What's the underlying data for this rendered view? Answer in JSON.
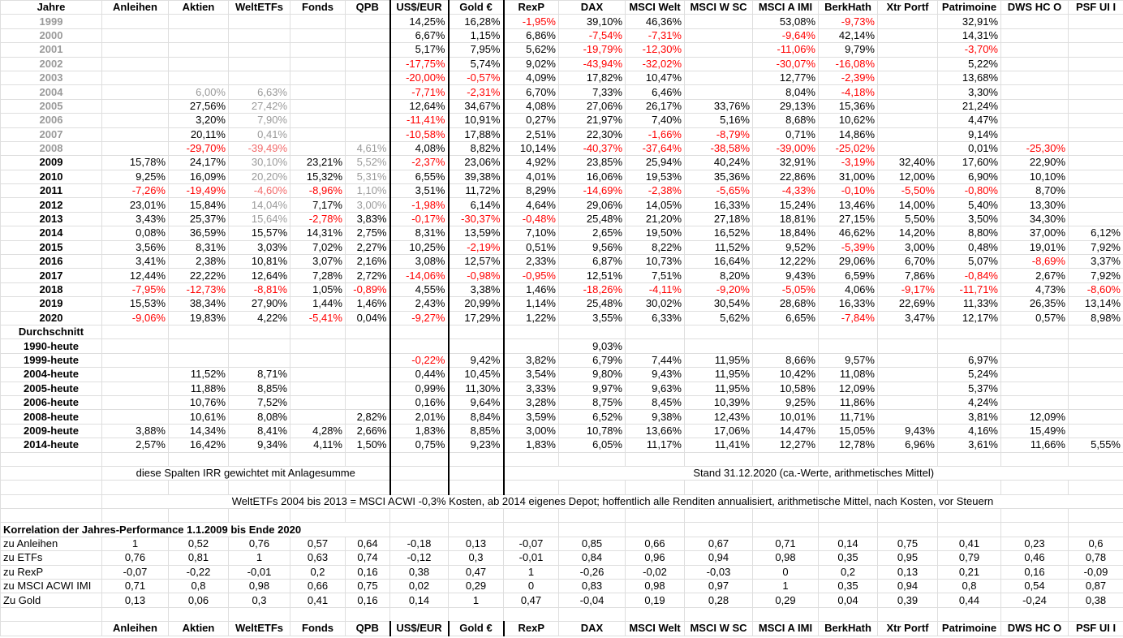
{
  "header": [
    "Jahre",
    "Anleihen",
    "Aktien",
    "WeltETFs",
    "Fonds",
    "QPB",
    "US$/EUR",
    "Gold €",
    "RexP",
    "DAX",
    "MSCI Welt",
    "MSCI W SC",
    "MSCI A IMI",
    "BerkHath",
    "Xtr Portf",
    "Patrimoine",
    "DWS HC O",
    "PSF UI I"
  ],
  "years": [
    [
      "1999",
      null,
      null,
      null,
      null,
      null,
      "14,25%",
      "16,28%",
      "-1,95%",
      "39,10%",
      "46,36%",
      null,
      "53,08%",
      "-9,73%",
      null,
      "32,91%",
      null,
      null
    ],
    [
      "2000",
      null,
      null,
      null,
      null,
      null,
      "6,67%",
      "1,15%",
      "6,86%",
      "-7,54%",
      "-7,31%",
      null,
      "-9,64%",
      "42,14%",
      null,
      "14,31%",
      null,
      null
    ],
    [
      "2001",
      null,
      null,
      null,
      null,
      null,
      "5,17%",
      "7,95%",
      "5,62%",
      "-19,79%",
      "-12,30%",
      null,
      "-11,06%",
      "9,79%",
      null,
      "-3,70%",
      null,
      null
    ],
    [
      "2002",
      null,
      null,
      null,
      null,
      null,
      "-17,75%",
      "5,74%",
      "9,02%",
      "-43,94%",
      "-32,02%",
      null,
      "-30,07%",
      "-16,08%",
      null,
      "5,22%",
      null,
      null
    ],
    [
      "2003",
      null,
      null,
      null,
      null,
      null,
      "-20,00%",
      "-0,57%",
      "4,09%",
      "17,82%",
      "10,47%",
      null,
      "12,77%",
      "-2,39%",
      null,
      "13,68%",
      null,
      null
    ],
    [
      "2004",
      null,
      "6,00%",
      "6,63%",
      null,
      null,
      "-7,71%",
      "-2,31%",
      "6,70%",
      "7,33%",
      "6,46%",
      null,
      "8,04%",
      "-4,18%",
      null,
      "3,30%",
      null,
      null
    ],
    [
      "2005",
      null,
      "27,56%",
      "27,42%",
      null,
      null,
      "12,64%",
      "34,67%",
      "4,08%",
      "27,06%",
      "26,17%",
      "33,76%",
      "29,13%",
      "15,36%",
      null,
      "21,24%",
      null,
      null
    ],
    [
      "2006",
      null,
      "3,20%",
      "7,90%",
      null,
      null,
      "-11,41%",
      "10,91%",
      "0,27%",
      "21,97%",
      "7,40%",
      "5,16%",
      "8,68%",
      "10,62%",
      null,
      "4,47%",
      null,
      null
    ],
    [
      "2007",
      null,
      "20,11%",
      "0,41%",
      null,
      null,
      "-10,58%",
      "17,88%",
      "2,51%",
      "22,30%",
      "-1,66%",
      "-8,79%",
      "0,71%",
      "14,86%",
      null,
      "9,14%",
      null,
      null
    ],
    [
      "2008",
      null,
      "-29,70%",
      "-39,49%",
      null,
      "4,61%",
      "4,08%",
      "8,82%",
      "10,14%",
      "-40,37%",
      "-37,64%",
      "-38,58%",
      "-39,00%",
      "-25,02%",
      null,
      "0,01%",
      "-25,30%",
      null
    ],
    [
      "2009",
      "15,78%",
      "24,17%",
      "30,10%",
      "23,21%",
      "5,52%",
      "-2,37%",
      "23,06%",
      "4,92%",
      "23,85%",
      "25,94%",
      "40,24%",
      "32,91%",
      "-3,19%",
      "32,40%",
      "17,60%",
      "22,90%",
      null
    ],
    [
      "2010",
      "9,25%",
      "16,09%",
      "20,20%",
      "15,32%",
      "5,31%",
      "6,55%",
      "39,38%",
      "4,01%",
      "16,06%",
      "19,53%",
      "35,36%",
      "22,86%",
      "31,00%",
      "12,00%",
      "6,90%",
      "10,10%",
      null
    ],
    [
      "2011",
      "-7,26%",
      "-19,49%",
      "-4,60%",
      "-8,96%",
      "1,10%",
      "3,51%",
      "11,72%",
      "8,29%",
      "-14,69%",
      "-2,38%",
      "-5,65%",
      "-4,33%",
      "-0,10%",
      "-5,50%",
      "-0,80%",
      "8,70%",
      null
    ],
    [
      "2012",
      "23,01%",
      "15,84%",
      "14,04%",
      "7,17%",
      "3,00%",
      "-1,98%",
      "6,14%",
      "4,64%",
      "29,06%",
      "14,05%",
      "16,33%",
      "15,24%",
      "13,46%",
      "14,00%",
      "5,40%",
      "13,30%",
      null
    ],
    [
      "2013",
      "3,43%",
      "25,37%",
      "15,64%",
      "-2,78%",
      "3,83%",
      "-0,17%",
      "-30,37%",
      "-0,48%",
      "25,48%",
      "21,20%",
      "27,18%",
      "18,81%",
      "27,15%",
      "5,50%",
      "3,50%",
      "34,30%",
      null
    ],
    [
      "2014",
      "0,08%",
      "36,59%",
      "15,57%",
      "14,31%",
      "2,75%",
      "8,31%",
      "13,59%",
      "7,10%",
      "2,65%",
      "19,50%",
      "16,52%",
      "18,84%",
      "46,62%",
      "14,20%",
      "8,80%",
      "37,00%",
      "6,12%"
    ],
    [
      "2015",
      "3,56%",
      "8,31%",
      "3,03%",
      "7,02%",
      "2,27%",
      "10,25%",
      "-2,19%",
      "0,51%",
      "9,56%",
      "8,22%",
      "11,52%",
      "9,52%",
      "-5,39%",
      "3,00%",
      "0,48%",
      "19,01%",
      "7,92%"
    ],
    [
      "2016",
      "3,41%",
      "2,38%",
      "10,81%",
      "3,07%",
      "2,16%",
      "3,08%",
      "12,57%",
      "2,33%",
      "6,87%",
      "10,73%",
      "16,64%",
      "12,22%",
      "29,06%",
      "6,70%",
      "5,07%",
      "-8,69%",
      "3,37%"
    ],
    [
      "2017",
      "12,44%",
      "22,22%",
      "12,64%",
      "7,28%",
      "2,72%",
      "-14,06%",
      "-0,98%",
      "-0,95%",
      "12,51%",
      "7,51%",
      "8,20%",
      "9,43%",
      "6,59%",
      "7,86%",
      "-0,84%",
      "2,67%",
      "7,92%"
    ],
    [
      "2018",
      "-7,95%",
      "-12,73%",
      "-8,81%",
      "1,05%",
      "-0,89%",
      "4,55%",
      "3,38%",
      "1,46%",
      "-18,26%",
      "-4,11%",
      "-9,20%",
      "-5,05%",
      "4,06%",
      "-9,17%",
      "-11,71%",
      "4,73%",
      "-8,60%"
    ],
    [
      "2019",
      "15,53%",
      "38,34%",
      "27,90%",
      "1,44%",
      "1,46%",
      "2,43%",
      "20,99%",
      "1,14%",
      "25,48%",
      "30,02%",
      "30,54%",
      "28,68%",
      "16,33%",
      "22,69%",
      "11,33%",
      "26,35%",
      "13,14%"
    ],
    [
      "2020",
      "-9,06%",
      "19,83%",
      "4,22%",
      "-5,41%",
      "0,04%",
      "-9,27%",
      "17,29%",
      "1,22%",
      "3,55%",
      "6,33%",
      "5,62%",
      "6,65%",
      "-7,84%",
      "3,47%",
      "12,17%",
      "0,57%",
      "8,98%"
    ]
  ],
  "muted_cells": [
    [
      0,
      0
    ],
    [
      1,
      0
    ],
    [
      2,
      0
    ],
    [
      3,
      0
    ],
    [
      4,
      0
    ],
    [
      5,
      0
    ],
    [
      6,
      0
    ],
    [
      7,
      0
    ],
    [
      8,
      0
    ],
    [
      9,
      0
    ],
    [
      5,
      2
    ],
    [
      5,
      3
    ],
    [
      6,
      3
    ],
    [
      7,
      3
    ],
    [
      8,
      3
    ],
    [
      9,
      3
    ],
    [
      9,
      5
    ],
    [
      10,
      3
    ],
    [
      10,
      5
    ],
    [
      11,
      3
    ],
    [
      11,
      5
    ],
    [
      12,
      3
    ],
    [
      12,
      5
    ],
    [
      13,
      3
    ],
    [
      13,
      5
    ],
    [
      14,
      3
    ]
  ],
  "average_title": "Durchschnitt",
  "averages": [
    [
      "1990-heute",
      null,
      null,
      null,
      null,
      null,
      null,
      null,
      null,
      "9,03%",
      null,
      null,
      null,
      null,
      null,
      null,
      null,
      null
    ],
    [
      "1999-heute",
      null,
      null,
      null,
      null,
      null,
      "-0,22%",
      "9,42%",
      "3,82%",
      "6,79%",
      "7,44%",
      "11,95%",
      "8,66%",
      "9,57%",
      null,
      "6,97%",
      null,
      null
    ],
    [
      "2004-heute",
      null,
      "11,52%",
      "8,71%",
      null,
      null,
      "0,44%",
      "10,45%",
      "3,54%",
      "9,80%",
      "9,43%",
      "11,95%",
      "10,42%",
      "11,08%",
      null,
      "5,24%",
      null,
      null
    ],
    [
      "2005-heute",
      null,
      "11,88%",
      "8,85%",
      null,
      null,
      "0,99%",
      "11,30%",
      "3,33%",
      "9,97%",
      "9,63%",
      "11,95%",
      "10,58%",
      "12,09%",
      null,
      "5,37%",
      null,
      null
    ],
    [
      "2006-heute",
      null,
      "10,76%",
      "7,52%",
      null,
      null,
      "0,16%",
      "9,64%",
      "3,28%",
      "8,75%",
      "8,45%",
      "10,39%",
      "9,25%",
      "11,86%",
      null,
      "4,24%",
      null,
      null
    ],
    [
      "2008-heute",
      null,
      "10,61%",
      "8,08%",
      null,
      "2,82%",
      "2,01%",
      "8,84%",
      "3,59%",
      "6,52%",
      "9,38%",
      "12,43%",
      "10,01%",
      "11,71%",
      null,
      "3,81%",
      "12,09%",
      null
    ],
    [
      "2009-heute",
      "3,88%",
      "14,34%",
      "8,41%",
      "4,28%",
      "2,66%",
      "1,83%",
      "8,85%",
      "3,00%",
      "10,78%",
      "13,66%",
      "17,06%",
      "14,47%",
      "15,05%",
      "9,43%",
      "4,16%",
      "15,49%",
      null
    ],
    [
      "2014-heute",
      "2,57%",
      "16,42%",
      "9,34%",
      "4,11%",
      "1,50%",
      "0,75%",
      "9,23%",
      "1,83%",
      "6,05%",
      "11,17%",
      "11,41%",
      "12,27%",
      "12,78%",
      "6,96%",
      "3,61%",
      "11,66%",
      "5,55%"
    ]
  ],
  "note_left": "diese Spalten IRR gewichtet mit Anlagesumme",
  "note_right": "Stand 31.12.2020 (ca.-Werte, arithmetisches Mittel)",
  "note_wide": "WeltETFs 2004 bis 2013 = MSCI ACWI -0,3% Kosten, ab 2014 eigenes Depot; hoffentlich alle Renditen annualisiert, arithmetische Mittel, nach Kosten, vor Steuern",
  "correlation_title": "Korrelation der Jahres-Performance 1.1.2009 bis Ende 2020",
  "correlation": [
    [
      "zu Anleihen",
      "1",
      "0,52",
      "0,76",
      "0,57",
      "0,64",
      "-0,18",
      "0,13",
      "-0,07",
      "0,85",
      "0,66",
      "0,67",
      "0,71",
      "0,14",
      "0,75",
      "0,41",
      "0,23",
      "0,6"
    ],
    [
      "zu ETFs",
      "0,76",
      "0,81",
      "1",
      "0,63",
      "0,74",
      "-0,12",
      "0,3",
      "-0,01",
      "0,84",
      "0,96",
      "0,94",
      "0,98",
      "0,35",
      "0,95",
      "0,79",
      "0,46",
      "0,78"
    ],
    [
      "zu RexP",
      "-0,07",
      "-0,22",
      "-0,01",
      "0,2",
      "0,16",
      "0,38",
      "0,47",
      "1",
      "-0,26",
      "-0,02",
      "-0,03",
      "0",
      "0,2",
      "0,13",
      "0,21",
      "0,16",
      "-0,09"
    ],
    [
      "zu MSCI ACWI IMI",
      "0,71",
      "0,8",
      "0,98",
      "0,66",
      "0,75",
      "0,02",
      "0,29",
      "0",
      "0,83",
      "0,98",
      "0,97",
      "1",
      "0,35",
      "0,94",
      "0,8",
      "0,54",
      "0,87"
    ],
    [
      "Zu Gold",
      "0,13",
      "0,06",
      "0,3",
      "0,41",
      "0,16",
      "0,14",
      "1",
      "0,47",
      "-0,04",
      "0,19",
      "0,28",
      "0,29",
      "0,04",
      "0,39",
      "0,44",
      "-0,24",
      "0,38"
    ]
  ],
  "footer_header": [
    "Anleihen",
    "Aktien",
    "WeltETFs",
    "Fonds",
    "QPB",
    "US$/EUR",
    "Gold €",
    "RexP",
    "DAX",
    "MSCI Welt",
    "MSCI W SC",
    "MSCI A IMI",
    "BerkHath",
    "Xtr Portf",
    "Patrimoine",
    "DWS HC O",
    "PSF UI I"
  ]
}
